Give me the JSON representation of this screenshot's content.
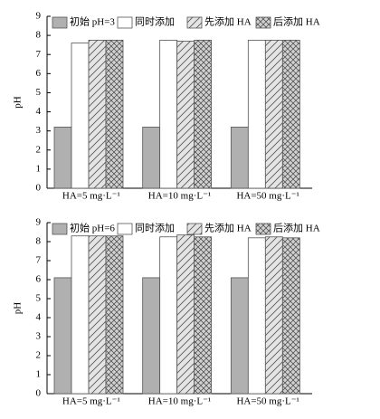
{
  "chart_data": [
    {
      "type": "bar",
      "y_label": "pH",
      "categories": [
        "HA=5 mg·L⁻¹",
        "HA=10 mg·L⁻¹",
        "HA=50 mg·L⁻¹"
      ],
      "series": [
        {
          "name": "初始 pH=3",
          "color": "#b0b0b0",
          "pattern": "solid",
          "values": [
            3.2,
            3.2,
            3.2
          ]
        },
        {
          "name": "同时添加",
          "color": "#ffffff",
          "pattern": "solid",
          "values": [
            7.6,
            7.75,
            7.75
          ]
        },
        {
          "name": "先添加 HA",
          "color": "#d8d8d8",
          "pattern": "diagonal",
          "values": [
            7.75,
            7.7,
            7.75
          ]
        },
        {
          "name": "后添加 HA",
          "color": "#c8c8c8",
          "pattern": "cross",
          "values": [
            7.75,
            7.75,
            7.75
          ]
        }
      ],
      "ylim": [
        0,
        9
      ],
      "yticks": [
        0,
        1,
        2,
        3,
        4,
        5,
        6,
        7,
        8,
        9
      ]
    },
    {
      "type": "bar",
      "y_label": "pH",
      "categories": [
        "HA=5 mg·L⁻¹",
        "HA=10 mg·L⁻¹",
        "HA=50 mg·L⁻¹"
      ],
      "series": [
        {
          "name": "初始 pH=6",
          "color": "#b0b0b0",
          "pattern": "solid",
          "values": [
            6.1,
            6.1,
            6.1
          ]
        },
        {
          "name": "同时添加",
          "color": "#ffffff",
          "pattern": "solid",
          "values": [
            8.3,
            8.25,
            8.2
          ]
        },
        {
          "name": "先添加 HA",
          "color": "#d8d8d8",
          "pattern": "diagonal",
          "values": [
            8.3,
            8.35,
            8.25
          ]
        },
        {
          "name": "后添加 HA",
          "color": "#c8c8c8",
          "pattern": "cross",
          "values": [
            8.3,
            8.25,
            8.2
          ]
        }
      ],
      "ylim": [
        0,
        9
      ],
      "yticks": [
        0,
        1,
        2,
        3,
        4,
        5,
        6,
        7,
        8,
        9
      ]
    }
  ]
}
